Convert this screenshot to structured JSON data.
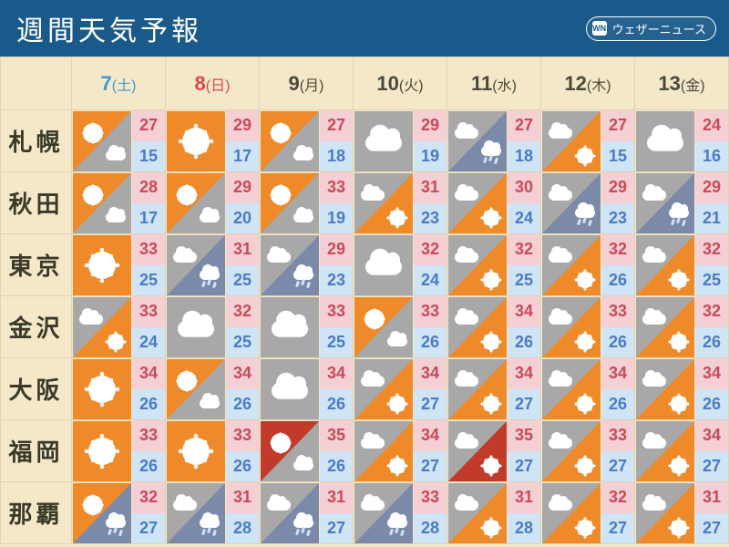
{
  "header": {
    "title_text": "週間天気予報",
    "brand_text": "ウェザーニュース",
    "brand_mark": "WN"
  },
  "colors": {
    "header_bg": "#1a5a8a",
    "page_bg": "#f5e8c8",
    "orange": "#ee8a2a",
    "gray": "#a8a8a8",
    "hotred": "#c23a2a",
    "hi_bg": "#f4cfd4",
    "lo_bg": "#cfe4f4",
    "saturday": "#3a9ad6",
    "sunday": "#d64a4a",
    "weekday": "#4a4a3a"
  },
  "days": [
    {
      "num": "7",
      "dow": "(土)",
      "class": "saturday"
    },
    {
      "num": "8",
      "dow": "(日)",
      "class": "sunday"
    },
    {
      "num": "9",
      "dow": "(月)",
      "class": "weekday"
    },
    {
      "num": "10",
      "dow": "(火)",
      "class": "weekday"
    },
    {
      "num": "11",
      "dow": "(水)",
      "class": "weekday"
    },
    {
      "num": "12",
      "dow": "(木)",
      "class": "weekday"
    },
    {
      "num": "13",
      "dow": "(金)",
      "class": "weekday"
    }
  ],
  "cities": [
    {
      "name": "札幌",
      "cells": [
        {
          "weather": "sun-then-cloud",
          "hi": 27,
          "lo": 15
        },
        {
          "weather": "sunny",
          "hi": 29,
          "lo": 17
        },
        {
          "weather": "sun-then-cloud",
          "hi": 27,
          "lo": 18
        },
        {
          "weather": "cloudy",
          "hi": 29,
          "lo": 19
        },
        {
          "weather": "cloud-then-rain",
          "hi": 27,
          "lo": 18
        },
        {
          "weather": "cloud-then-sun",
          "hi": 27,
          "lo": 15
        },
        {
          "weather": "cloudy",
          "hi": 24,
          "lo": 16
        }
      ]
    },
    {
      "name": "秋田",
      "cells": [
        {
          "weather": "sun-then-cloud",
          "hi": 28,
          "lo": 17
        },
        {
          "weather": "sun-then-cloud",
          "hi": 29,
          "lo": 20
        },
        {
          "weather": "sun-then-cloud",
          "hi": 33,
          "lo": 19
        },
        {
          "weather": "cloud-then-sun",
          "hi": 31,
          "lo": 23
        },
        {
          "weather": "cloud-then-sun",
          "hi": 30,
          "lo": 24
        },
        {
          "weather": "cloud-then-rain",
          "hi": 29,
          "lo": 23
        },
        {
          "weather": "cloud-then-rain",
          "hi": 29,
          "lo": 21
        }
      ]
    },
    {
      "name": "東京",
      "cells": [
        {
          "weather": "sunny",
          "hi": 33,
          "lo": 25
        },
        {
          "weather": "cloud-then-rain",
          "hi": 31,
          "lo": 25
        },
        {
          "weather": "cloud-then-rain",
          "hi": 29,
          "lo": 23
        },
        {
          "weather": "cloudy",
          "hi": 32,
          "lo": 24
        },
        {
          "weather": "cloud-then-sun",
          "hi": 32,
          "lo": 25
        },
        {
          "weather": "cloud-then-sun",
          "hi": 32,
          "lo": 26
        },
        {
          "weather": "cloud-then-sun",
          "hi": 32,
          "lo": 25
        }
      ]
    },
    {
      "name": "金沢",
      "cells": [
        {
          "weather": "cloud-then-sun",
          "hi": 33,
          "lo": 24
        },
        {
          "weather": "cloudy",
          "hi": 32,
          "lo": 25
        },
        {
          "weather": "cloudy",
          "hi": 33,
          "lo": 25
        },
        {
          "weather": "sun-then-cloud",
          "hi": 33,
          "lo": 26
        },
        {
          "weather": "cloud-then-sun",
          "hi": 34,
          "lo": 26
        },
        {
          "weather": "cloud-then-sun",
          "hi": 33,
          "lo": 26
        },
        {
          "weather": "cloud-then-sun",
          "hi": 32,
          "lo": 26
        }
      ]
    },
    {
      "name": "大阪",
      "cells": [
        {
          "weather": "sunny",
          "hi": 34,
          "lo": 26
        },
        {
          "weather": "sun-then-cloud",
          "hi": 34,
          "lo": 26
        },
        {
          "weather": "cloudy",
          "hi": 34,
          "lo": 26
        },
        {
          "weather": "cloud-then-sun",
          "hi": 34,
          "lo": 27
        },
        {
          "weather": "cloud-then-sun",
          "hi": 34,
          "lo": 27
        },
        {
          "weather": "cloud-then-sun",
          "hi": 34,
          "lo": 26
        },
        {
          "weather": "cloud-then-sun",
          "hi": 34,
          "lo": 26
        }
      ]
    },
    {
      "name": "福岡",
      "cells": [
        {
          "weather": "sunny",
          "hi": 33,
          "lo": 26
        },
        {
          "weather": "sunny",
          "hi": 33,
          "lo": 26
        },
        {
          "weather": "hot-sun-cloud",
          "hi": 35,
          "lo": 26
        },
        {
          "weather": "cloud-then-sun",
          "hi": 34,
          "lo": 27
        },
        {
          "weather": "cloud-then-hotsun",
          "hi": 35,
          "lo": 27
        },
        {
          "weather": "cloud-then-sun",
          "hi": 33,
          "lo": 27
        },
        {
          "weather": "cloud-then-sun",
          "hi": 34,
          "lo": 27
        }
      ]
    },
    {
      "name": "那覇",
      "cells": [
        {
          "weather": "sun-then-rain",
          "hi": 32,
          "lo": 27
        },
        {
          "weather": "cloud-then-rain",
          "hi": 31,
          "lo": 28
        },
        {
          "weather": "cloud-then-rain",
          "hi": 31,
          "lo": 27
        },
        {
          "weather": "cloud-then-rain",
          "hi": 33,
          "lo": 28
        },
        {
          "weather": "cloud-then-sun",
          "hi": 31,
          "lo": 28
        },
        {
          "weather": "cloud-then-sun",
          "hi": 32,
          "lo": 27
        },
        {
          "weather": "cloud-then-sun",
          "hi": 31,
          "lo": 27
        }
      ]
    }
  ]
}
